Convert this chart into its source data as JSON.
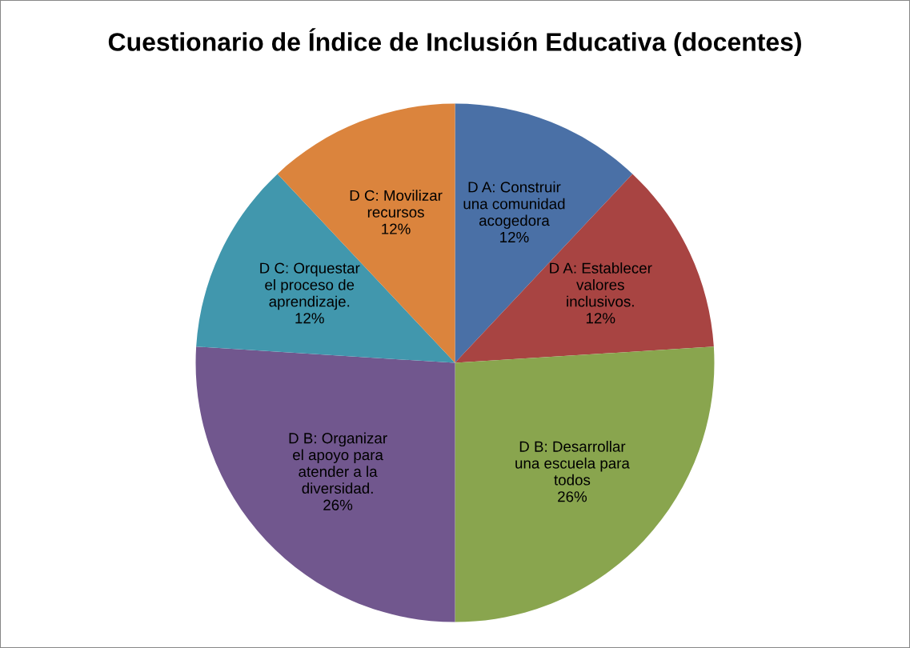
{
  "chart_data": {
    "type": "pie",
    "title": "Cuestionario de Índice de Inclusión Educativa (docentes)",
    "categories": [
      "D A: Construir una comunidad acogedora",
      "D A: Establecer valores inclusivos.",
      "D B: Desarrollar una escuela para todos",
      "D B: Organizar el apoyo para atender a la diversidad.",
      "D C: Orquestar el proceso de aprendizaje.",
      "D C: Movilizar recursos"
    ],
    "values": [
      12,
      12,
      26,
      26,
      12,
      12
    ],
    "value_labels": [
      "12%",
      "12%",
      "26%",
      "26%",
      "12%",
      "12%"
    ],
    "colors": [
      "#4a70a6",
      "#a84442",
      "#89a54e",
      "#71578e",
      "#4197ad",
      "#db843d"
    ],
    "legend": false
  }
}
